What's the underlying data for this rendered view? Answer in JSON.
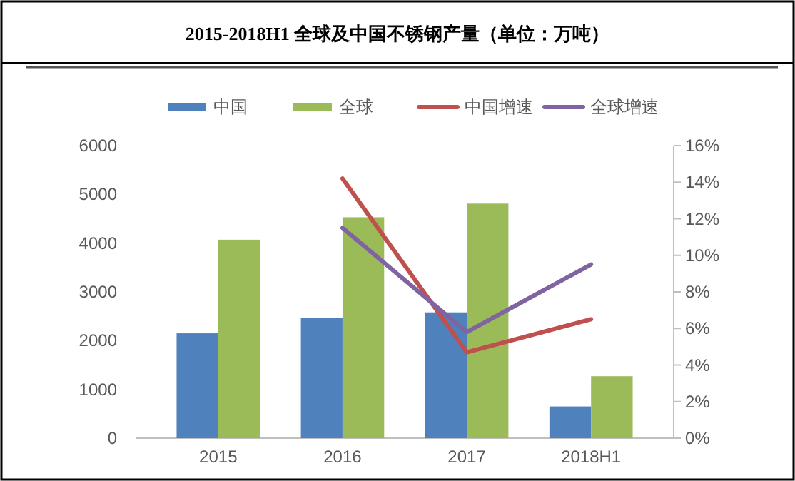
{
  "chart_data": {
    "type": "bar",
    "title": "2015-2018H1 全球及中国不锈钢产量（单位：万吨）",
    "categories": [
      "2015",
      "2016",
      "2017",
      "2018H1"
    ],
    "series": [
      {
        "name": "中国",
        "color": "#4f81bd",
        "values": [
          2150,
          2460,
          2580,
          650
        ]
      },
      {
        "name": "全球",
        "color": "#9bbb59",
        "values": [
          4070,
          4530,
          4810,
          1270
        ]
      },
      {
        "name": "中国增速",
        "type": "line",
        "axis": "y2",
        "color": "#c0504d",
        "values": [
          null,
          14.2,
          4.7,
          6.5
        ]
      },
      {
        "name": "全球增速",
        "type": "line",
        "axis": "y2",
        "color": "#8064a2",
        "values": [
          null,
          11.5,
          5.8,
          9.5
        ]
      }
    ],
    "ylim": [
      0,
      6000
    ],
    "yticks": [
      0,
      1000,
      2000,
      3000,
      4000,
      5000,
      6000
    ],
    "y2lim": [
      0,
      16
    ],
    "y2ticks": [
      {
        "value": 0,
        "label": "0%"
      },
      {
        "value": 2,
        "label": "2%"
      },
      {
        "value": 4,
        "label": "4%"
      },
      {
        "value": 6,
        "label": "6%"
      },
      {
        "value": 8,
        "label": "8%"
      },
      {
        "value": 10,
        "label": "10%"
      },
      {
        "value": 12,
        "label": "12%"
      },
      {
        "value": 14,
        "label": "14%"
      },
      {
        "value": 16,
        "label": "16%"
      }
    ],
    "legend": "top",
    "grid": false
  }
}
